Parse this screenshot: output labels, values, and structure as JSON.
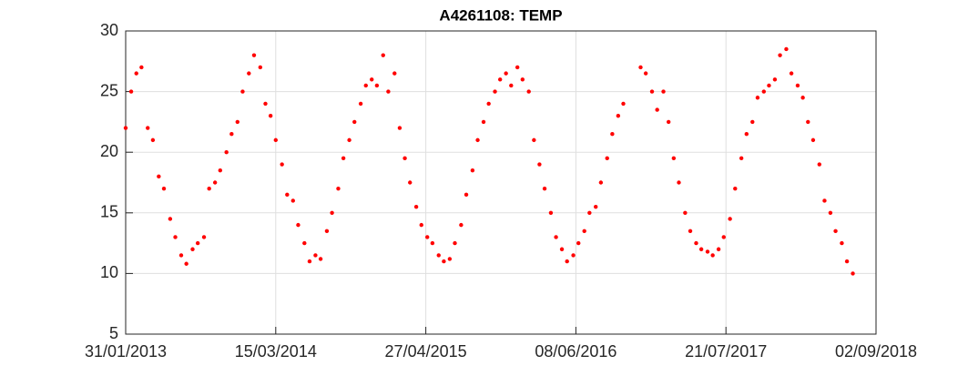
{
  "chart_data": {
    "type": "scatter",
    "title": "A4261108: TEMP",
    "series": [
      {
        "name": "TEMP",
        "color": "#ff0000",
        "x": [
          "2013-01-31",
          "2013-02-15",
          "2013-03-01",
          "2013-03-15",
          "2013-04-01",
          "2013-04-15",
          "2013-05-01",
          "2013-05-15",
          "2013-06-01",
          "2013-06-15",
          "2013-07-01",
          "2013-07-15",
          "2013-08-01",
          "2013-08-15",
          "2013-09-01",
          "2013-09-15",
          "2013-10-01",
          "2013-10-15",
          "2013-11-01",
          "2013-11-15",
          "2013-12-01",
          "2013-12-15",
          "2014-01-01",
          "2014-01-15",
          "2014-02-01",
          "2014-02-15",
          "2014-03-01",
          "2014-03-15",
          "2014-04-01",
          "2014-04-15",
          "2014-05-01",
          "2014-05-15",
          "2014-06-01",
          "2014-06-15",
          "2014-07-01",
          "2014-07-15",
          "2014-08-01",
          "2014-08-15",
          "2014-09-01",
          "2014-09-15",
          "2014-10-01",
          "2014-10-15",
          "2014-11-01",
          "2014-11-15",
          "2014-12-01",
          "2014-12-15",
          "2015-01-01",
          "2015-01-15",
          "2015-02-01",
          "2015-02-15",
          "2015-03-01",
          "2015-03-15",
          "2015-04-01",
          "2015-04-15",
          "2015-05-01",
          "2015-05-15",
          "2015-06-01",
          "2015-06-15",
          "2015-07-01",
          "2015-07-15",
          "2015-08-01",
          "2015-08-15",
          "2015-09-01",
          "2015-09-15",
          "2015-10-01",
          "2015-10-15",
          "2015-11-01",
          "2015-11-15",
          "2015-12-01",
          "2015-12-15",
          "2016-01-01",
          "2016-01-15",
          "2016-02-01",
          "2016-02-15",
          "2016-03-01",
          "2016-03-15",
          "2016-04-01",
          "2016-04-15",
          "2016-05-01",
          "2016-05-15",
          "2016-06-01",
          "2016-06-15",
          "2016-07-01",
          "2016-07-15",
          "2016-08-01",
          "2016-08-15",
          "2016-09-01",
          "2016-09-15",
          "2016-10-01",
          "2016-10-15",
          "2016-12-01",
          "2016-12-15",
          "2017-01-01",
          "2017-01-15",
          "2017-02-01",
          "2017-02-15",
          "2017-03-01",
          "2017-03-15",
          "2017-04-01",
          "2017-04-15",
          "2017-05-01",
          "2017-05-15",
          "2017-06-01",
          "2017-06-15",
          "2017-07-01",
          "2017-07-15",
          "2017-08-01",
          "2017-08-15",
          "2017-09-01",
          "2017-09-15",
          "2017-10-01",
          "2017-10-15",
          "2017-11-01",
          "2017-11-15",
          "2017-12-01",
          "2017-12-15",
          "2018-01-01",
          "2018-01-15",
          "2018-02-01",
          "2018-02-15",
          "2018-03-01",
          "2018-03-15",
          "2018-04-01",
          "2018-04-15",
          "2018-05-01",
          "2018-05-15",
          "2018-06-01",
          "2018-06-15",
          "2018-07-01"
        ],
        "values": [
          22,
          25,
          26.5,
          27,
          22,
          21,
          18,
          17,
          14.5,
          13,
          11.5,
          10.8,
          12,
          12.5,
          13,
          17,
          17.5,
          18.5,
          20,
          21.5,
          22.5,
          25,
          26.5,
          28,
          27,
          24,
          23,
          21,
          19,
          16.5,
          16,
          14,
          12.5,
          11,
          11.5,
          11.2,
          13.5,
          15,
          17,
          19.5,
          21,
          22.5,
          24,
          25.5,
          26,
          25.5,
          28,
          25,
          26.5,
          22,
          19.5,
          17.5,
          15.5,
          14,
          13,
          12.5,
          11.5,
          11,
          11.2,
          12.5,
          14,
          16.5,
          18.5,
          21,
          22.5,
          24,
          25,
          26,
          26.5,
          25.5,
          27,
          26,
          25,
          21,
          19,
          17,
          15,
          13,
          12,
          11,
          11.5,
          12.5,
          13.5,
          15,
          15.5,
          17.5,
          19.5,
          21.5,
          23,
          24,
          27,
          26.5,
          25,
          23.5,
          25,
          22.5,
          19.5,
          17.5,
          15,
          13.5,
          12.5,
          12,
          11.8,
          11.5,
          12,
          13,
          14.5,
          17,
          19.5,
          21.5,
          22.5,
          24.5,
          25,
          25.5,
          26,
          28,
          28.5,
          26.5,
          25.5,
          24.5,
          22.5,
          21,
          19,
          16,
          15,
          13.5,
          12.5,
          11,
          10
        ]
      }
    ],
    "xlim": [
      "2013-01-31",
      "2018-09-02"
    ],
    "xticks": [
      {
        "value": "2013-01-31",
        "label": "31/01/2013"
      },
      {
        "value": "2014-03-15",
        "label": "15/03/2014"
      },
      {
        "value": "2015-04-27",
        "label": "27/04/2015"
      },
      {
        "value": "2016-06-08",
        "label": "08/06/2016"
      },
      {
        "value": "2017-07-21",
        "label": "21/07/2017"
      },
      {
        "value": "2018-09-02",
        "label": "02/09/2018"
      }
    ],
    "ylim": [
      5,
      30
    ],
    "yticks": [
      5,
      10,
      15,
      20,
      25,
      30
    ],
    "grid": true
  }
}
